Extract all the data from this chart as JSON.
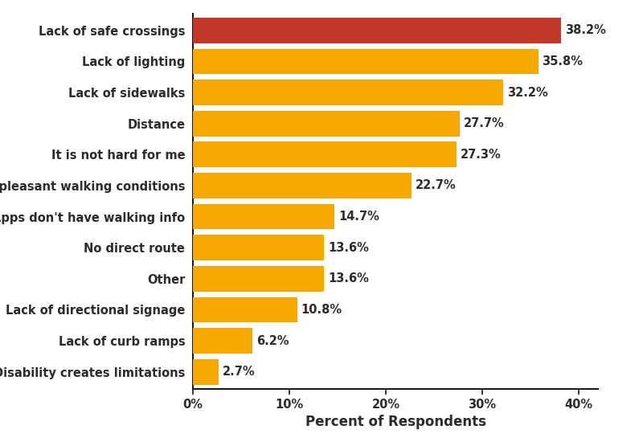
{
  "categories": [
    "Disability creates limitations",
    "Lack of curb ramps",
    "Lack of directional signage",
    "Other",
    "No direct route",
    "Apps don't have walking info",
    "Unpleasant walking conditions",
    "It is not hard for me",
    "Distance",
    "Lack of sidewalks",
    "Lack of lighting",
    "Lack of safe crossings"
  ],
  "values": [
    2.7,
    6.2,
    10.8,
    13.6,
    13.6,
    14.7,
    22.7,
    27.3,
    27.7,
    32.2,
    35.8,
    38.2
  ],
  "bar_colors": [
    "#F5A800",
    "#F5A800",
    "#F5A800",
    "#F5A800",
    "#F5A800",
    "#F5A800",
    "#F5A800",
    "#F5A800",
    "#F5A800",
    "#F5A800",
    "#F5A800",
    "#C0392B"
  ],
  "label_texts": [
    "2.7%",
    "6.2%",
    "10.8%",
    "13.6%",
    "13.6%",
    "14.7%",
    "22.7%",
    "27.3%",
    "27.7%",
    "32.2%",
    "35.8%",
    "38.2%"
  ],
  "xlabel": "Percent of Respondents",
  "xlim": [
    0,
    40
  ],
  "xtick_vals": [
    0,
    10,
    20,
    30,
    40
  ],
  "xtick_labels": [
    "0%",
    "10%",
    "20%",
    "30%",
    "40%"
  ],
  "bar_height": 0.82,
  "label_fontsize": 10.5,
  "tick_label_fontsize": 10.5,
  "xlabel_fontsize": 12,
  "background_color": "#FFFFFF",
  "text_color": "#2b2b2b",
  "label_color": "#2b2b2b",
  "spine_color": "#1a1a1a"
}
